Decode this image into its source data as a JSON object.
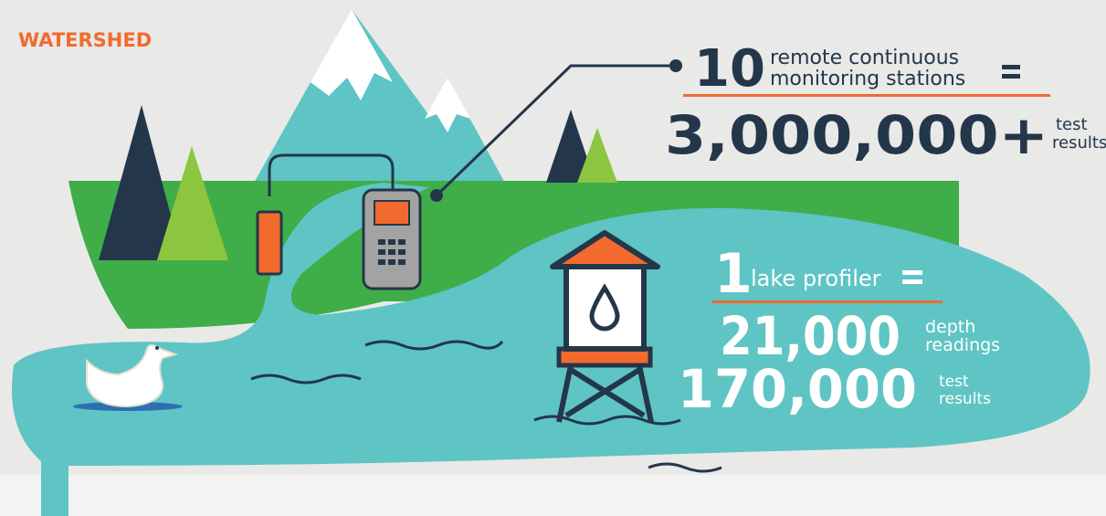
{
  "brand": "WATERSHED",
  "stations": {
    "count": "10",
    "line1": "remote continuous",
    "line2": "monitoring stations",
    "total": "3,000,000+",
    "unit1": "test",
    "unit2": "results"
  },
  "profiler": {
    "count": "1",
    "label": "lake profiler",
    "depth_total": "21,000",
    "depth_unit1": "depth",
    "depth_unit2": "readings",
    "test_total": "170,000",
    "test_unit1": "test",
    "test_unit2": "results"
  }
}
